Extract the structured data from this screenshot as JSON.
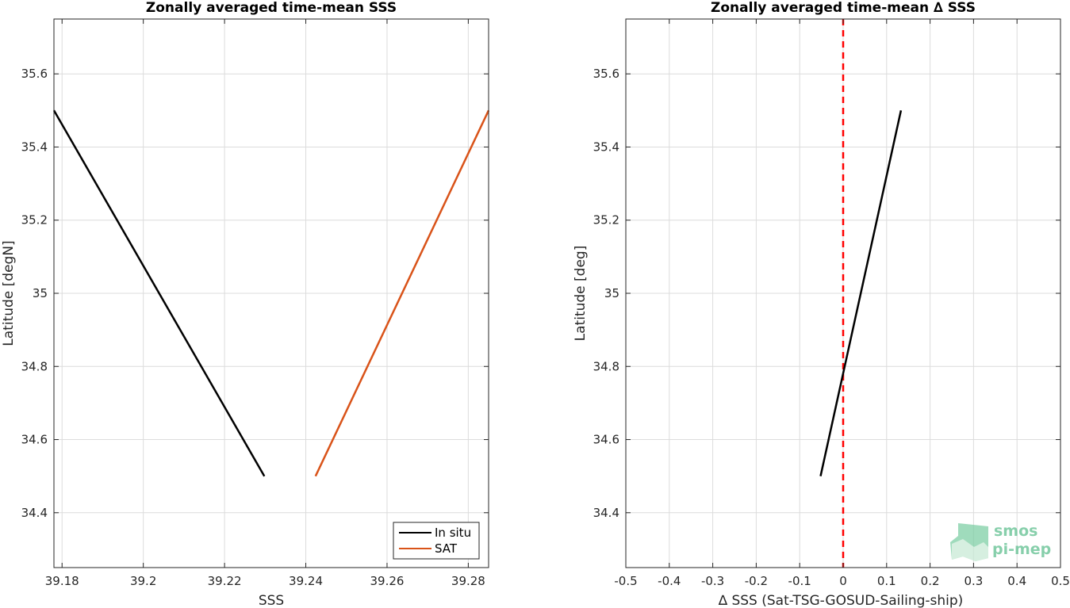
{
  "chart_data": [
    {
      "type": "line",
      "title": "Zonally averaged time-mean SSS",
      "xlabel": "SSS",
      "ylabel": "Latitude [degN]",
      "xlim": [
        39.178,
        39.285
      ],
      "ylim": [
        34.25,
        35.75
      ],
      "xticks": [
        "39.18",
        "39.2",
        "39.22",
        "39.24",
        "39.26",
        "39.28"
      ],
      "yticks": [
        "34.4",
        "34.6",
        "34.8",
        "35",
        "35.2",
        "35.4",
        "35.6"
      ],
      "grid": true,
      "legend": "bottom-right",
      "series": [
        {
          "name": "In situ",
          "color": "#000000",
          "x": [
            39.178,
            39.2298
          ],
          "y": [
            35.5,
            34.5
          ]
        },
        {
          "name": "SAT",
          "color": "#d95319",
          "x": [
            39.2424,
            39.285
          ],
          "y": [
            34.5,
            35.5
          ]
        }
      ]
    },
    {
      "type": "line",
      "title": "Zonally averaged time-mean ∆ SSS",
      "xlabel": "∆ SSS (Sat-TSG-GOSUD-Sailing-ship)",
      "ylabel": "Latitude [deg]",
      "xlim": [
        -0.5,
        0.5
      ],
      "ylim": [
        34.25,
        35.75
      ],
      "xticks": [
        "-0.5",
        "-0.4",
        "-0.3",
        "-0.2",
        "-0.1",
        "0",
        "0.1",
        "0.2",
        "0.3",
        "0.4",
        "0.5"
      ],
      "yticks": [
        "34.4",
        "34.6",
        "34.8",
        "35",
        "35.2",
        "35.4",
        "35.6"
      ],
      "grid": true,
      "reference_line": {
        "x": 0,
        "color": "#ff0000",
        "style": "dashed"
      },
      "series": [
        {
          "color": "#000000",
          "x": [
            -0.052,
            0.133
          ],
          "y": [
            34.5,
            35.5
          ]
        }
      ]
    }
  ],
  "watermark": {
    "line1": "smos",
    "line2": "pi-mep",
    "color": "#5fbf8f"
  }
}
